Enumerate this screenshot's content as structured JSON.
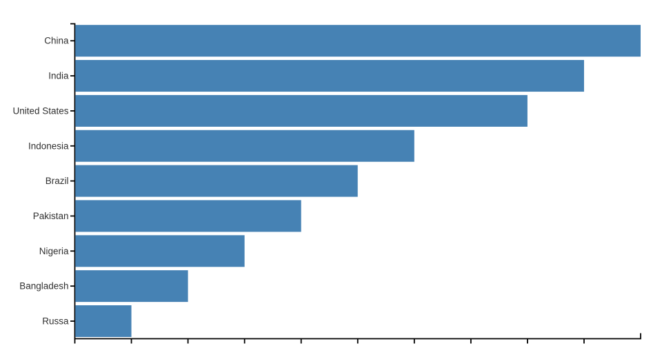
{
  "chart_data": {
    "type": "bar",
    "orientation": "horizontal",
    "title": "",
    "xlabel": "",
    "ylabel": "",
    "categories": [
      "China",
      "India",
      "United States",
      "Indonesia",
      "Brazil",
      "Pakistan",
      "Nigeria",
      "Bangladesh",
      "Russa"
    ],
    "values": [
      10,
      9,
      8,
      6,
      5,
      4,
      3,
      2,
      1
    ],
    "xlim": [
      0,
      10
    ],
    "x_ticks": [
      0,
      1,
      2,
      3,
      4,
      5,
      6,
      7,
      8,
      9,
      10
    ],
    "x_tick_labels_visible": false,
    "y_tick_marks": true,
    "grid": false,
    "legend_position": "none",
    "colors": {
      "bar": "#4682B4",
      "axis": "#000000",
      "label": "#303030",
      "background": "#ffffff"
    }
  }
}
